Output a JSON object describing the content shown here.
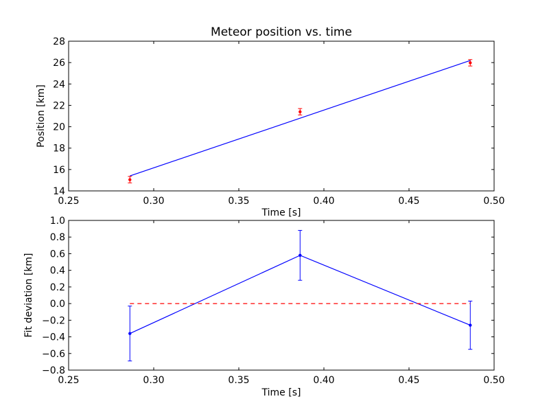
{
  "chart_data": [
    {
      "type": "scatter",
      "title": "Meteor position vs. time",
      "xlabel": "Time [s]",
      "ylabel": "Position [km]",
      "xlim": [
        0.25,
        0.5
      ],
      "ylim": [
        14,
        28
      ],
      "xticks": [
        "0.25",
        "0.30",
        "0.35",
        "0.40",
        "0.45",
        "0.50"
      ],
      "yticks": [
        "14",
        "16",
        "18",
        "20",
        "22",
        "24",
        "26",
        "28"
      ],
      "grid": false,
      "series": [
        {
          "kind": "points-with-errorbars",
          "color": "#ff0000",
          "x": [
            0.286,
            0.386,
            0.486
          ],
          "y": [
            15.05,
            21.4,
            25.98
          ],
          "yerr": [
            0.3,
            0.3,
            0.3
          ]
        },
        {
          "kind": "fit-line",
          "color": "#0000ff",
          "x": [
            0.286,
            0.486
          ],
          "y": [
            15.4,
            26.2
          ]
        }
      ]
    },
    {
      "type": "line",
      "title": "",
      "xlabel": "Time [s]",
      "ylabel": "Fit deviation [km]",
      "xlim": [
        0.25,
        0.5
      ],
      "ylim": [
        -0.8,
        1.0
      ],
      "xticks": [
        "0.25",
        "0.30",
        "0.35",
        "0.40",
        "0.45",
        "0.50"
      ],
      "yticks": [
        "−0.8",
        "−0.6",
        "−0.4",
        "−0.2",
        "0.0",
        "0.2",
        "0.4",
        "0.6",
        "0.8",
        "1.0"
      ],
      "grid": false,
      "series": [
        {
          "kind": "line-with-errorbars",
          "color": "#0000ff",
          "x": [
            0.286,
            0.386,
            0.486
          ],
          "y": [
            -0.36,
            0.58,
            -0.26
          ],
          "yerr": [
            0.33,
            0.3,
            0.29
          ]
        },
        {
          "kind": "reference-dashed",
          "color": "#ff0000",
          "x": [
            0.286,
            0.486
          ],
          "y": [
            0.0,
            0.0
          ]
        }
      ]
    }
  ]
}
